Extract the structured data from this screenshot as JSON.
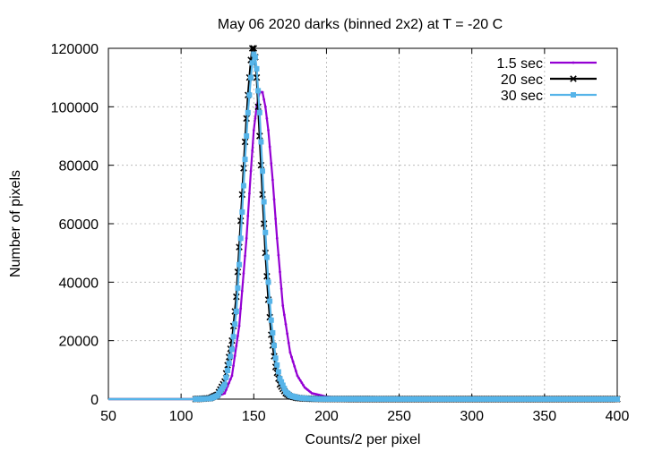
{
  "chart_data": {
    "type": "line",
    "title": "May 06 2020 darks (binned 2x2) at T = -20 C",
    "xlabel": "Counts/2 per pixel",
    "ylabel": "Number of pixels",
    "xlim": [
      50,
      400
    ],
    "ylim": [
      0,
      120000
    ],
    "xticks": [
      50,
      100,
      150,
      200,
      250,
      300,
      350,
      400
    ],
    "yticks": [
      0,
      20000,
      40000,
      60000,
      80000,
      100000,
      120000
    ],
    "grid": true,
    "legend_position": "top-right",
    "series": [
      {
        "name": "1.5 sec",
        "color": "#9400d3",
        "marker": "dot",
        "x": [
          50,
          110,
          120,
          130,
          135,
          140,
          145,
          148,
          150,
          152,
          154,
          156,
          158,
          160,
          163,
          166,
          170,
          175,
          180,
          185,
          190,
          200,
          210,
          230,
          250,
          300,
          350,
          400
        ],
        "y": [
          0,
          0,
          50,
          2000,
          8000,
          25000,
          55000,
          78000,
          92000,
          100000,
          105000,
          105000,
          100000,
          92000,
          75000,
          55000,
          32000,
          16000,
          8000,
          4000,
          2000,
          800,
          400,
          150,
          80,
          30,
          10,
          0
        ]
      },
      {
        "name": "20 sec",
        "color": "#000000",
        "marker": "cross",
        "x": [
          50,
          110,
          120,
          125,
          130,
          135,
          138,
          140,
          142,
          144,
          146,
          148,
          149,
          150,
          151,
          152,
          154,
          156,
          158,
          160,
          162,
          165,
          168,
          172,
          175,
          180,
          185,
          190,
          200,
          250,
          300,
          350,
          400
        ],
        "y": [
          0,
          0,
          300,
          1500,
          6000,
          20000,
          35000,
          52000,
          70000,
          88000,
          104000,
          116000,
          120000,
          120000,
          117000,
          110000,
          90000,
          70000,
          50000,
          34000,
          22000,
          11000,
          5000,
          2000,
          1000,
          400,
          200,
          100,
          30,
          5,
          0,
          0,
          0
        ]
      },
      {
        "name": "30 sec",
        "color": "#56b4e9",
        "marker": "square",
        "x": [
          50,
          110,
          120,
          125,
          130,
          135,
          138,
          140,
          142,
          144,
          146,
          148,
          149,
          150,
          151,
          152,
          154,
          156,
          158,
          160,
          162,
          165,
          168,
          172,
          175,
          180,
          185,
          190,
          200,
          250,
          300,
          350,
          400
        ],
        "y": [
          0,
          0,
          200,
          1200,
          5000,
          17000,
          30000,
          46000,
          64000,
          82000,
          98000,
          110000,
          115000,
          118000,
          117000,
          113000,
          98000,
          78000,
          57000,
          40000,
          27000,
          14000,
          7000,
          2500,
          1200,
          500,
          250,
          120,
          40,
          5,
          0,
          0,
          0
        ]
      }
    ]
  }
}
